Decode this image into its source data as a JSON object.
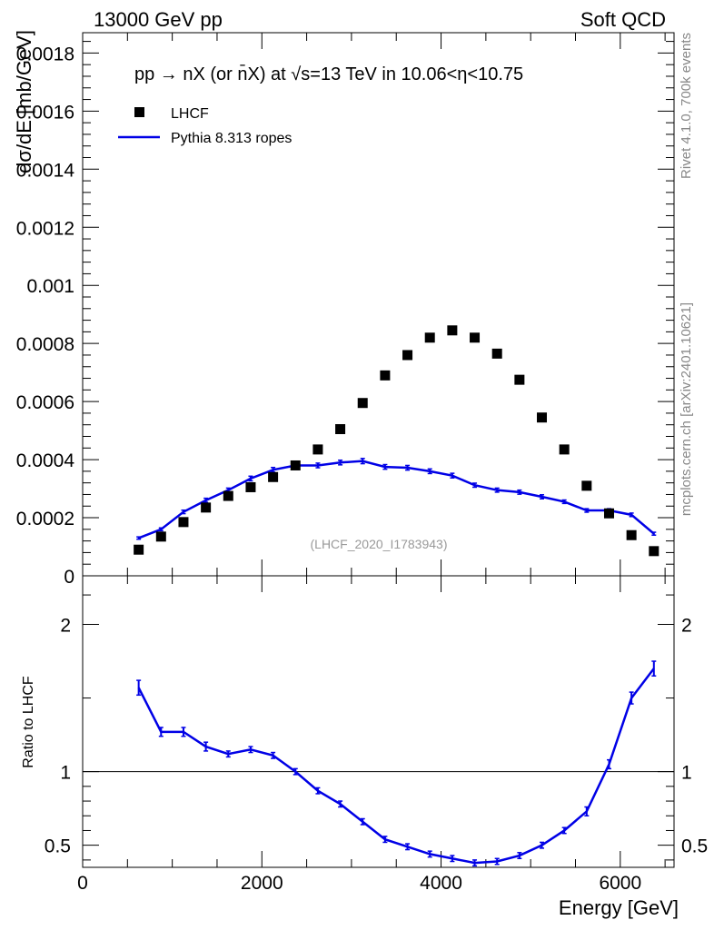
{
  "header": {
    "left": "13000 GeV pp",
    "right": "Soft QCD",
    "side_top": "Rivet 4.1.0,  700k events",
    "side_bottom": "mcplots.cern.ch [arXiv:2401.10621]"
  },
  "chart_data": [
    {
      "type": "scatter",
      "panel": "main",
      "title": "pp → nX (or n̄X) at √s=13 TeV in 10.06<η<10.75",
      "ylabel": "dσ/dE [mb/GeV]",
      "xlabel": "",
      "xlim": [
        0,
        6600
      ],
      "ylim": [
        0,
        0.00187
      ],
      "yticks": [
        0,
        0.0002,
        0.0004,
        0.0006,
        0.0008,
        0.001,
        0.0012,
        0.0014,
        0.0016,
        0.0018
      ],
      "ytick_labels": [
        "0",
        "0.0002",
        "0.0004",
        "0.0006",
        "0.0008",
        "0.001",
        "0.0012",
        "0.0014",
        "0.0016",
        "0.0018"
      ],
      "x": [
        625,
        875,
        1125,
        1375,
        1625,
        1875,
        2125,
        2375,
        2625,
        2875,
        3125,
        3375,
        3625,
        3875,
        4125,
        4375,
        4625,
        4875,
        5125,
        5375,
        5625,
        5875,
        6125,
        6375
      ],
      "legend_position": "top-left",
      "watermark": "(LHCF_2020_I1783943)",
      "series": [
        {
          "name": "LHCF",
          "style": "square-markers",
          "color": "#000000",
          "values": [
            9e-05,
            0.000135,
            0.000185,
            0.000235,
            0.000275,
            0.000305,
            0.00034,
            0.00038,
            0.000435,
            0.000505,
            0.000595,
            0.00069,
            0.00076,
            0.00082,
            0.000845,
            0.00082,
            0.000765,
            0.000675,
            0.000545,
            0.000435,
            0.00031,
            0.000215,
            0.00014,
            8.5e-05
          ]
        },
        {
          "name": "Pythia 8.313 ropes",
          "style": "line-with-errorbars",
          "color": "#0000e6",
          "values": [
            0.00013,
            0.00016,
            0.00022,
            0.00026,
            0.000295,
            0.000335,
            0.000365,
            0.00038,
            0.00038,
            0.00039,
            0.000395,
            0.000375,
            0.000372,
            0.00036,
            0.000345,
            0.000312,
            0.000295,
            0.000288,
            0.000272,
            0.000255,
            0.000225,
            0.000225,
            0.00021,
            0.000145
          ],
          "errors": [
            4e-06,
            5e-06,
            6e-06,
            7e-06,
            7e-06,
            8e-06,
            8e-06,
            8e-06,
            8e-06,
            8e-06,
            9e-06,
            8e-06,
            8e-06,
            8e-06,
            8e-06,
            7e-06,
            7e-06,
            7e-06,
            7e-06,
            6e-06,
            6e-06,
            6e-06,
            6e-06,
            5e-06
          ]
        }
      ]
    },
    {
      "type": "line",
      "panel": "ratio",
      "ylabel": "Ratio to LHCF",
      "xlabel": "Energy [GeV]",
      "xlim": [
        0,
        6600
      ],
      "ylim": [
        0.35,
        2.33
      ],
      "yticks": [
        0.5,
        1,
        2
      ],
      "ytick_labels": [
        "0.5",
        "1",
        "2"
      ],
      "xticks": [
        0,
        2000,
        4000,
        6000
      ],
      "xtick_labels": [
        "0",
        "2000",
        "4000",
        "6000"
      ],
      "reference_line": 1,
      "x": [
        625,
        875,
        1125,
        1375,
        1625,
        1875,
        2125,
        2375,
        2625,
        2875,
        3125,
        3375,
        3625,
        3875,
        4125,
        4375,
        4625,
        4875,
        5125,
        5375,
        5625,
        5875,
        6125,
        6375
      ],
      "series": [
        {
          "name": "Pythia 8.313 ropes / LHCF",
          "color": "#0000e6",
          "values": [
            1.57,
            1.27,
            1.27,
            1.17,
            1.12,
            1.15,
            1.11,
            1.0,
            0.87,
            0.78,
            0.66,
            0.54,
            0.49,
            0.44,
            0.41,
            0.38,
            0.39,
            0.43,
            0.5,
            0.6,
            0.73,
            1.05,
            1.5,
            1.7
          ],
          "errors": [
            0.05,
            0.03,
            0.03,
            0.03,
            0.02,
            0.02,
            0.02,
            0.02,
            0.02,
            0.02,
            0.02,
            0.02,
            0.02,
            0.02,
            0.02,
            0.02,
            0.02,
            0.02,
            0.02,
            0.02,
            0.03,
            0.03,
            0.04,
            0.05
          ]
        }
      ]
    }
  ]
}
